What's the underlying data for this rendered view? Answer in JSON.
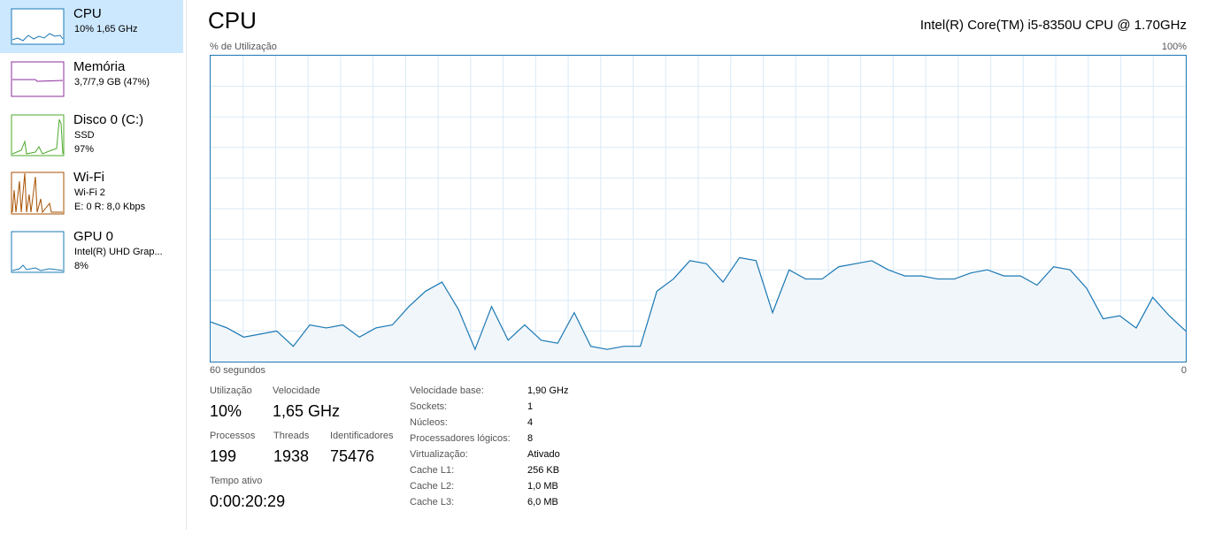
{
  "sidebar": [
    {
      "name": "CPU",
      "lines": [
        "10%  1,65 GHz"
      ]
    },
    {
      "name": "Memória",
      "lines": [
        "3,7/7,9 GB (47%)"
      ]
    },
    {
      "name": "Disco 0 (C:)",
      "lines": [
        "SSD",
        "97%"
      ]
    },
    {
      "name": "Wi-Fi",
      "lines": [
        "Wi-Fi 2",
        "E: 0 R: 8,0 Kbps"
      ]
    },
    {
      "name": "GPU 0",
      "lines": [
        "Intel(R) UHD Grap...",
        "8%"
      ]
    }
  ],
  "header": {
    "title": "CPU",
    "processor": "Intel(R) Core(TM) i5-8350U CPU @ 1.70GHz"
  },
  "graph": {
    "type": "line",
    "y_label": "% de Utilização",
    "y_max_label": "100%",
    "x_left_label": "60 segundos",
    "x_right_label": "0",
    "ylim": [
      0,
      100
    ],
    "color": "#1a78b4",
    "values": [
      13,
      11,
      8,
      9,
      10,
      5,
      12,
      11,
      12,
      8,
      11,
      12,
      18,
      23,
      26,
      17,
      4,
      18,
      7,
      12,
      7,
      6,
      16,
      5,
      4,
      5,
      5,
      23,
      27,
      33,
      32,
      26,
      34,
      33,
      16,
      30,
      27,
      27,
      31,
      32,
      33,
      30,
      28,
      28,
      27,
      27,
      29,
      30,
      28,
      28,
      25,
      31,
      30,
      24,
      14,
      15,
      11,
      21,
      15,
      10
    ]
  },
  "stats": [
    [
      {
        "label": "Utilização",
        "value": "10%"
      },
      {
        "label": "Velocidade",
        "value": "1,65 GHz"
      }
    ],
    [
      {
        "label": "Processos",
        "value": "199"
      },
      {
        "label": "Threads",
        "value": "1938"
      },
      {
        "label": "Identificadores",
        "value": "75476"
      }
    ],
    [
      {
        "label": "Tempo ativo",
        "value": "0:00:20:29"
      }
    ]
  ],
  "details": [
    [
      "Velocidade base:",
      "1,90 GHz"
    ],
    [
      "Sockets:",
      "1"
    ],
    [
      "Núcleos:",
      "4"
    ],
    [
      "Processadores lógicos:",
      "8"
    ],
    [
      "Virtualização:",
      "Ativado"
    ],
    [
      "Cache L1:",
      "256 KB"
    ],
    [
      "Cache L2:",
      "1,0 MB"
    ],
    [
      "Cache L3:",
      "6,0 MB"
    ]
  ]
}
